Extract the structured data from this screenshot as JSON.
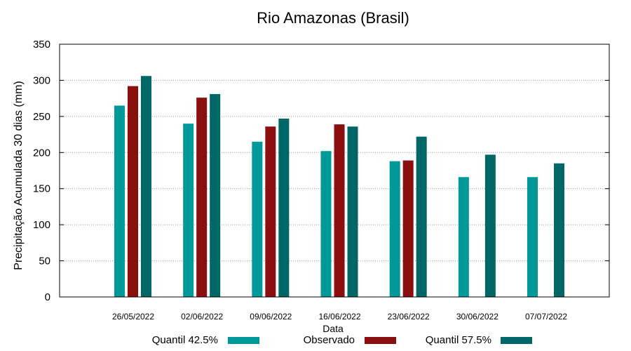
{
  "chart_data": {
    "type": "bar",
    "title": "Rio Amazonas (Brasil)",
    "xlabel": "Data",
    "ylabel": "Precipitação Acumulada 30 dias (mm)",
    "ylim": [
      0,
      350
    ],
    "yticks": [
      0,
      50,
      100,
      150,
      200,
      250,
      300,
      350
    ],
    "grid": true,
    "legend_position": "bottom",
    "categories": [
      "26/05/2022",
      "02/06/2022",
      "09/06/2022",
      "16/06/2022",
      "23/06/2022",
      "30/06/2022",
      "07/07/2022"
    ],
    "series": [
      {
        "name": "Quantil 42.5%",
        "color": "#009999",
        "values": [
          265,
          240,
          215,
          202,
          188,
          166,
          166
        ]
      },
      {
        "name": "Observado",
        "color": "#8b0f0f",
        "values": [
          292,
          276,
          236,
          239,
          189,
          null,
          null
        ]
      },
      {
        "name": "Quantil 57.5%",
        "color": "#006666",
        "values": [
          306,
          281,
          247,
          236,
          222,
          197,
          185
        ]
      }
    ]
  }
}
